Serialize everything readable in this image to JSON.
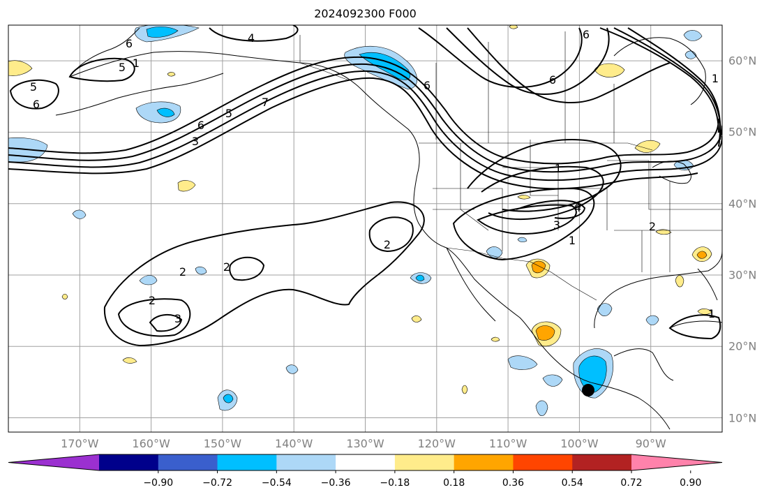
{
  "title": "2024092300 F000",
  "map": {
    "projection": "PlateCarree",
    "extent_lon": [
      -180,
      -80
    ],
    "extent_lat": [
      8,
      65
    ],
    "lon_labels": [
      "170°W",
      "160°W",
      "150°W",
      "140°W",
      "130°W",
      "120°W",
      "110°W",
      "100°W",
      "90°W"
    ],
    "lat_labels": [
      "10°N",
      "20°N",
      "30°N",
      "40°N",
      "50°N",
      "60°N"
    ],
    "contour_labels": [
      "6",
      "5",
      "4",
      "1",
      "7",
      "5",
      "6",
      "6",
      "5",
      "6",
      "1",
      "3",
      "2",
      "1",
      "2",
      "3",
      "4",
      "2",
      "2",
      "1",
      "3",
      "6",
      "6",
      "1",
      "4",
      "2",
      "1"
    ],
    "marker": "black-dot"
  },
  "colorbar": {
    "ticks": [
      "−0.90",
      "−0.72",
      "−0.54",
      "−0.36",
      "−0.18",
      "0.18",
      "0.36",
      "0.54",
      "0.72",
      "0.90"
    ],
    "colors": [
      "#9b30d0",
      "#00008b",
      "#3a5fcd",
      "#00bfff",
      "#add8f7",
      "#ffffff",
      "#ffec8b",
      "#ffa500",
      "#ff4500",
      "#b22222",
      "#ff82ab"
    ]
  }
}
